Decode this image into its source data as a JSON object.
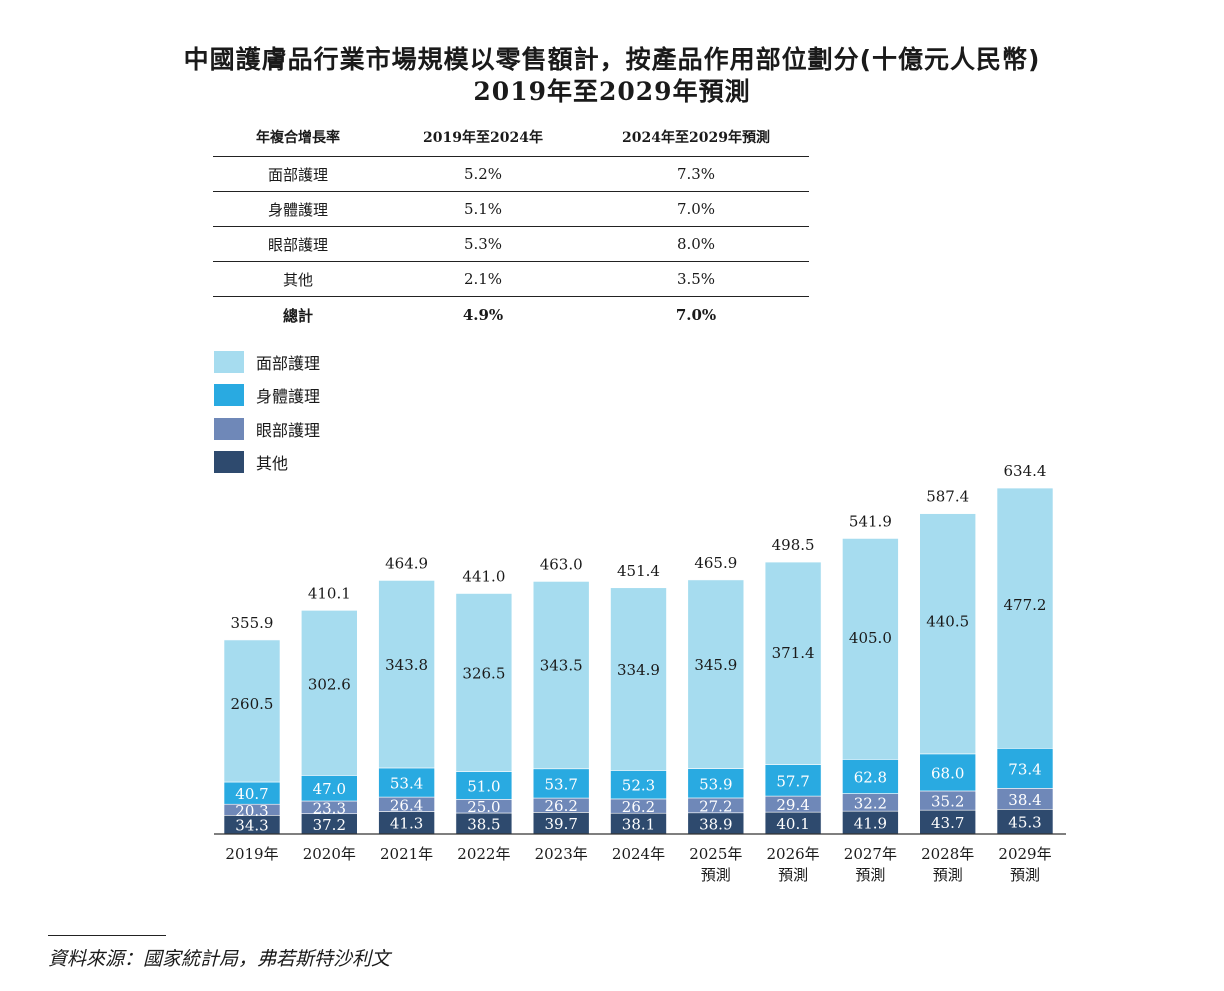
{
  "title_line1": "中國護膚品行業市場規模以零售額計，按產品作用部位劃分(十億元人民幣)",
  "title_line2": "2019年至2029年預測",
  "cagr_table": {
    "headers": [
      "年複合增長率",
      "2019年至2024年",
      "2024年至2029年預測"
    ],
    "rows": [
      {
        "label": "面部護理",
        "v1": "5.2%",
        "v2": "7.3%"
      },
      {
        "label": "身體護理",
        "v1": "5.1%",
        "v2": "7.0%"
      },
      {
        "label": "眼部護理",
        "v1": "5.3%",
        "v2": "8.0%"
      },
      {
        "label": "其他",
        "v1": "2.1%",
        "v2": "3.5%"
      }
    ],
    "total": {
      "label": "總計",
      "v1": "4.9%",
      "v2": "7.0%"
    }
  },
  "legend": [
    {
      "label": "面部護理",
      "color": "#a6dcef"
    },
    {
      "label": "身體護理",
      "color": "#29aae1"
    },
    {
      "label": "眼部護理",
      "color": "#6f88b8"
    },
    {
      "label": "其他",
      "color": "#2e4a6e"
    }
  ],
  "chart_data": {
    "type": "bar",
    "stacked": true,
    "categories": [
      "2019年",
      "2020年",
      "2021年",
      "2022年",
      "2023年",
      "2024年",
      "2025年\n預測",
      "2026年\n預測",
      "2027年\n預測",
      "2028年\n預測",
      "2029年\n預測"
    ],
    "series": [
      {
        "name": "其他",
        "color": "#2e4a6e",
        "label_color": "#ffffff",
        "values": [
          34.3,
          37.2,
          41.3,
          38.5,
          39.7,
          38.1,
          38.9,
          40.1,
          41.9,
          43.7,
          45.3
        ]
      },
      {
        "name": "眼部護理",
        "color": "#6f88b8",
        "label_color": "#ffffff",
        "values": [
          20.3,
          23.3,
          26.4,
          25.0,
          26.2,
          26.2,
          27.2,
          29.4,
          32.2,
          35.2,
          38.4
        ]
      },
      {
        "name": "身體護理",
        "color": "#29aae1",
        "label_color": "#ffffff",
        "values": [
          40.7,
          47.0,
          53.4,
          51.0,
          53.7,
          52.3,
          53.9,
          57.7,
          62.8,
          68.0,
          73.4
        ]
      },
      {
        "name": "面部護理",
        "color": "#a6dcef",
        "label_color": "#1a1a1a",
        "values": [
          260.5,
          302.6,
          343.8,
          326.5,
          343.5,
          334.9,
          345.9,
          371.4,
          405.0,
          440.5,
          477.2
        ]
      }
    ],
    "totals": [
      "355.9",
      "410.1",
      "464.9",
      "441.0",
      "463.0",
      "451.4",
      "465.9",
      "498.5",
      "541.9",
      "587.4",
      "634.4"
    ],
    "ylim": [
      0,
      634.4
    ]
  },
  "source": "資料來源：國家統計局，弗若斯特沙利文"
}
